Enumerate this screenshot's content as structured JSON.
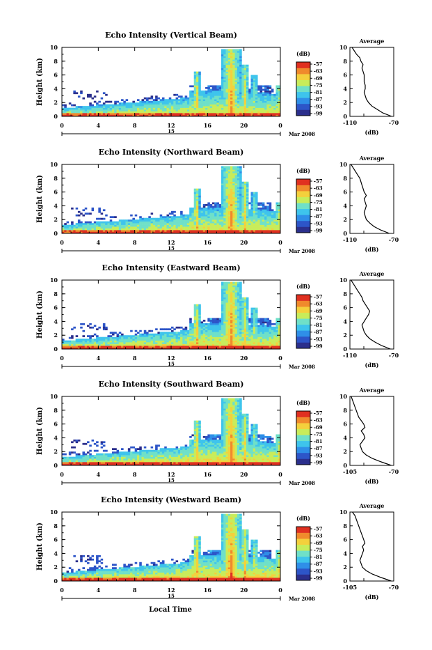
{
  "xlabel": "Local Time",
  "panels_common": {
    "ylabel": "Height (km)",
    "x_ticks": [
      "0",
      "4",
      "8",
      "12",
      "16",
      "20",
      "0"
    ],
    "y_ticks": [
      "0",
      "2",
      "4",
      "6",
      "8",
      "10"
    ],
    "date_center": "15",
    "date_suffix": "Mar 2008",
    "colorbar_unit": "(dB)",
    "colorbar_ticks": [
      "-57",
      "-63",
      "-69",
      "-75",
      "-81",
      "-87",
      "-93",
      "-99"
    ],
    "avg_title": "Average",
    "avg_xlabel": "(dB)",
    "avg_y_ticks": [
      "0",
      "2",
      "4",
      "6",
      "8",
      "10"
    ]
  },
  "chart_data": [
    {
      "type": "heatmap",
      "title": "Echo Intensity (Vertical Beam)",
      "xlim": [
        0,
        24
      ],
      "ylim": [
        0,
        10
      ],
      "clim": [
        -99,
        -57
      ],
      "avg_xlim": [
        -110,
        -70
      ],
      "avg_ticks": [
        "-110",
        "-70"
      ],
      "avg_profile": {
        "height": [
          0,
          0.5,
          1,
          1.5,
          2,
          2.5,
          3,
          3.5,
          4,
          4.5,
          5,
          5.5,
          6,
          6.5,
          7,
          7.5,
          8,
          8.5,
          9,
          9.5,
          10
        ],
        "db": [
          -72,
          -80,
          -85,
          -90,
          -93,
          -95,
          -96,
          -97,
          -96,
          -96,
          -97,
          -97,
          -97,
          -98,
          -99,
          -98,
          -100,
          -101,
          -104,
          -106,
          -108
        ]
      }
    },
    {
      "type": "heatmap",
      "title": "Echo Intensity (Northward Beam)",
      "xlim": [
        0,
        24
      ],
      "ylim": [
        0,
        10
      ],
      "clim": [
        -99,
        -57
      ],
      "avg_xlim": [
        -110,
        -70
      ],
      "avg_ticks": [
        "-110",
        "-70"
      ],
      "avg_profile": {
        "height": [
          0,
          0.5,
          1,
          1.5,
          2,
          2.5,
          3,
          3.5,
          4,
          4.5,
          5,
          5.5,
          6,
          6.5,
          7,
          7.5,
          8,
          8.5,
          9,
          9.5,
          10
        ],
        "db": [
          -74,
          -82,
          -88,
          -92,
          -95,
          -96,
          -97,
          -96,
          -95,
          -96,
          -97,
          -95,
          -97,
          -98,
          -99,
          -100,
          -101,
          -103,
          -105,
          -107,
          -109
        ]
      }
    },
    {
      "type": "heatmap",
      "title": "Echo Intensity (Eastward Beam)",
      "xlim": [
        0,
        24
      ],
      "ylim": [
        0,
        10
      ],
      "clim": [
        -99,
        -57
      ],
      "avg_xlim": [
        -110,
        -70
      ],
      "avg_ticks": [
        "-110",
        "-70"
      ],
      "avg_profile": {
        "height": [
          0,
          0.5,
          1,
          1.5,
          2,
          2.5,
          3,
          3.5,
          4,
          4.5,
          5,
          5.5,
          6,
          6.5,
          7,
          7.5,
          8,
          8.5,
          9,
          9.5,
          10
        ],
        "db": [
          -73,
          -81,
          -87,
          -92,
          -95,
          -97,
          -98,
          -99,
          -97,
          -95,
          -93,
          -92,
          -94,
          -96,
          -98,
          -99,
          -101,
          -103,
          -105,
          -107,
          -109
        ]
      }
    },
    {
      "type": "heatmap",
      "title": "Echo Intensity (Southward Beam)",
      "xlim": [
        0,
        24
      ],
      "ylim": [
        0,
        10
      ],
      "clim": [
        -99,
        -57
      ],
      "avg_xlim": [
        -105,
        -70
      ],
      "avg_ticks": [
        "-105",
        "-70"
      ],
      "avg_profile": {
        "height": [
          0,
          0.5,
          1,
          1.5,
          2,
          2.5,
          3,
          3.5,
          4,
          4.5,
          5,
          5.5,
          6,
          6.5,
          7,
          7.5,
          8,
          8.5,
          9,
          9.5,
          10
        ],
        "db": [
          -72,
          -80,
          -87,
          -92,
          -95,
          -96,
          -97,
          -95,
          -93,
          -94,
          -96,
          -93,
          -94,
          -96,
          -98,
          -99,
          -100,
          -101,
          -102,
          -103,
          -104
        ]
      }
    },
    {
      "type": "heatmap",
      "title": "Echo Intensity (Westward Beam)",
      "xlim": [
        0,
        24
      ],
      "ylim": [
        0,
        10
      ],
      "clim": [
        -99,
        -57
      ],
      "avg_xlim": [
        -105,
        -70
      ],
      "avg_ticks": [
        "-105",
        "-70"
      ],
      "avg_profile": {
        "height": [
          0,
          0.5,
          1,
          1.5,
          2,
          2.5,
          3,
          3.5,
          4,
          4.5,
          5,
          5.5,
          6,
          6.5,
          7,
          7.5,
          8,
          8.5,
          9,
          9.5,
          10
        ],
        "db": [
          -72,
          -80,
          -87,
          -92,
          -95,
          -96,
          -97,
          -96,
          -95,
          -94,
          -95,
          -93,
          -94,
          -95,
          -96,
          -97,
          -98,
          -99,
          -100,
          -101,
          -103
        ]
      }
    }
  ],
  "colors": {
    "colormap": [
      "#2b2f8c",
      "#2d55c8",
      "#2f8fe8",
      "#3ec4ec",
      "#6fe0c8",
      "#c8ec5a",
      "#f4d03c",
      "#f08a2c",
      "#e03020"
    ]
  }
}
